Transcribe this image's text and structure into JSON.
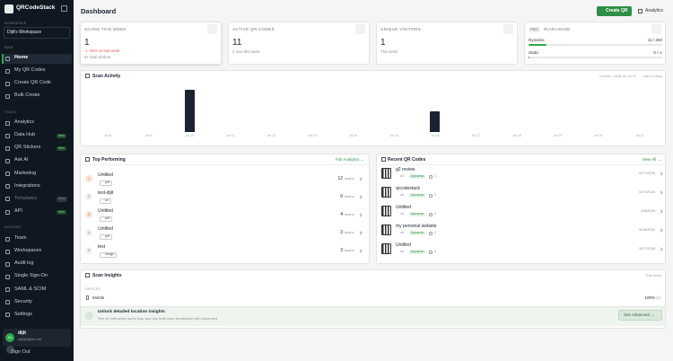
{
  "sidebar": {
    "brand": "QRCodeStack",
    "workspace_label": "WORKSPACE",
    "workspace": "Dijit's Workspace",
    "sections": [
      {
        "title": "MAIN",
        "items": [
          {
            "label": "Home"
          },
          {
            "label": "My QR Codes"
          },
          {
            "label": "Create QR Code"
          },
          {
            "label": "Bulk Create"
          }
        ]
      },
      {
        "title": "TOOLS",
        "items": [
          {
            "label": "Analytics"
          },
          {
            "label": "Data Hub",
            "badge": "New"
          },
          {
            "label": "QR Stickers",
            "badge": "New"
          },
          {
            "label": "Ask AI"
          },
          {
            "label": "Marketing"
          },
          {
            "label": "Integrations"
          },
          {
            "label": "Templates",
            "badge": "Soon"
          },
          {
            "label": "API",
            "badge": "New"
          }
        ]
      },
      {
        "title": "ACCOUNT",
        "items": [
          {
            "label": "Team"
          },
          {
            "label": "Workspaces"
          },
          {
            "label": "Audit log"
          },
          {
            "label": "Single Sign-On"
          },
          {
            "label": "SAML & SCIM"
          },
          {
            "label": "Security"
          },
          {
            "label": "Settings"
          }
        ]
      }
    ],
    "user": {
      "initials": "DI",
      "name": "dijit",
      "email": "dijit@dijitan.net"
    },
    "sign_out": "Sign Out"
  },
  "header": {
    "title": "Dashboard",
    "create_button": "Create QR",
    "analytics_button": "Analytics"
  },
  "stats": [
    {
      "label": "SCANS THIS WEEK",
      "value": 1,
      "change": "↘ -50% vs last week",
      "note": "57 total all-time"
    },
    {
      "label": "ACTIVE QR CODES",
      "value": 11,
      "note": "2 new this week"
    },
    {
      "label": "UNIQUE VISITORS",
      "value": 1,
      "note": "This week"
    }
  ],
  "plan_usage": {
    "badge": "PRO",
    "title": "PLAN USAGE",
    "rows": [
      {
        "label": "Dynamic",
        "value": "11 / 250"
      },
      {
        "label": "Static",
        "value": "0 / ∞"
      }
    ]
  },
  "chart_data": {
    "type": "bar",
    "title": "Scan Activity",
    "subtitle": "3 scans · peak on Jul 10",
    "period": "Last 14 days",
    "categories": [
      "Jul 8",
      "Jul 9",
      "Jul 10",
      "Jul 11",
      "Jul 12",
      "Jul 13",
      "Jul 14",
      "Jul 15",
      "Jul 16",
      "Jul 17",
      "Jul 18",
      "Jul 19",
      "Jul 20",
      "Jul 21"
    ],
    "values": [
      0,
      0,
      2,
      0,
      0,
      0,
      0,
      0,
      1,
      0,
      0,
      0,
      0,
      0
    ],
    "color": "#1b2330"
  },
  "top_performing": {
    "title": "Top Performing",
    "link": "Full Analytics →",
    "scans_label": "scans",
    "rows": [
      {
        "rank": 1,
        "name": "Untitled",
        "type": "pdf",
        "scans": 12
      },
      {
        "rank": 2,
        "name": "test-dijit",
        "type": "url",
        "scans": 6
      },
      {
        "rank": 3,
        "name": "Untitled",
        "type": "pdf",
        "scans": 4
      },
      {
        "rank": 4,
        "name": "Untitled",
        "type": "pdf",
        "scans": 3
      },
      {
        "rank": 5,
        "name": "test",
        "type": "image",
        "scans": 3
      }
    ]
  },
  "recent_qr_codes": {
    "title": "Recent QR Codes",
    "link": "View All →",
    "rows": [
      {
        "name": "g2 review",
        "type": "url",
        "status": "Dynamic",
        "scans": 1,
        "date": "6/17/2026"
      },
      {
        "name": "qrcodestack",
        "type": "url",
        "status": "Dynamic",
        "scans": 2,
        "date": "6/17/2026"
      },
      {
        "name": "Untitled",
        "type": "url",
        "status": "Dynamic",
        "scans": 2,
        "date": "6/5/2026"
      },
      {
        "name": "my personal website",
        "type": "url",
        "status": "Dynamic",
        "scans": 2,
        "date": "5/28/2026"
      },
      {
        "name": "Untitled",
        "type": "url",
        "status": "Dynamic",
        "scans": 2,
        "date": "5/27/2026"
      }
    ]
  },
  "scan_insights": {
    "title": "Scan Insights",
    "period": "This week",
    "devices_label": "DEVICES",
    "devices": [
      {
        "name": "Mobile",
        "percent": "100%",
        "count": "(1)"
      }
    ],
    "banner": {
      "title": "Unlock detailed location insights",
      "subtitle": "See an interactive world map and city-level scan breakdown with Advanced",
      "button": "See Advanced →"
    }
  }
}
